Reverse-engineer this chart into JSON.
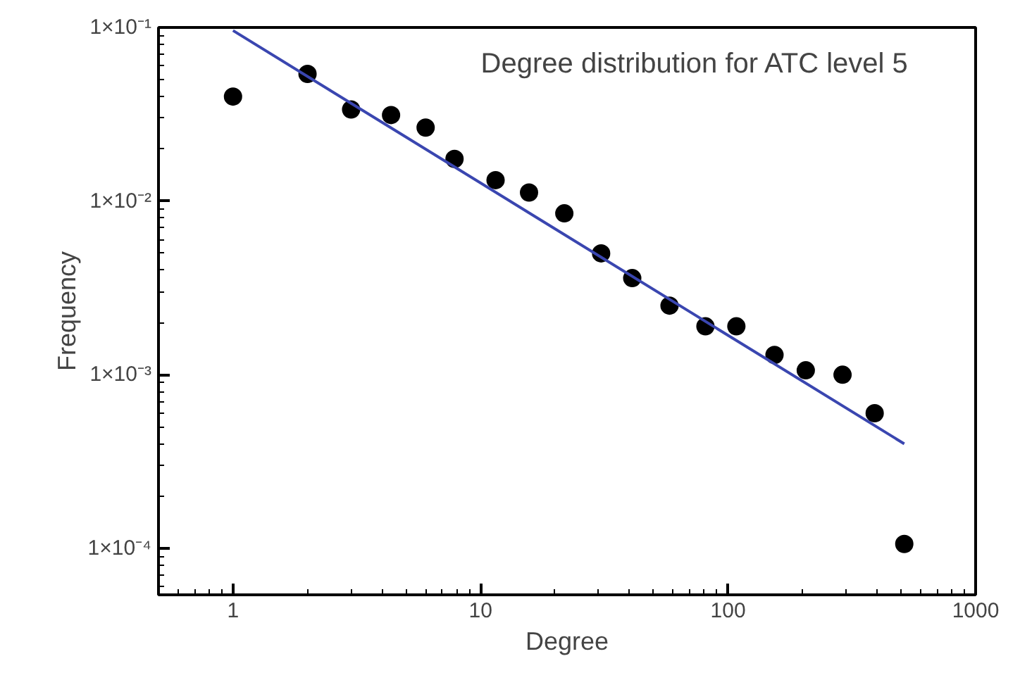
{
  "chart_data": {
    "type": "scatter",
    "xlabel": "Degree",
    "ylabel": "Frequency",
    "annotations": [
      "Degree distribution for ATC level 5"
    ],
    "log": "xy",
    "grid": false,
    "xlim": [
      0.5,
      1000
    ],
    "xticks": [
      1,
      10,
      100,
      1000
    ],
    "ylim": [
      5.4e-05,
      0.1
    ],
    "yticks": [
      {
        "value": 0.1,
        "label": "1×10⁻¹"
      },
      {
        "value": 0.01,
        "label": "1×10⁻²"
      },
      {
        "value": 0.001,
        "label": "1×10⁻³"
      },
      {
        "value": 0.0001,
        "label": "1×10⁻⁴"
      }
    ],
    "series": [
      {
        "color": "#000000",
        "marker": "circle",
        "x": [
          1,
          2,
          3,
          4.35,
          6,
          7.85,
          11.5,
          15.7,
          21.8,
          30.7,
          41,
          58,
          81,
          108,
          154,
          206,
          290,
          391,
          515
        ],
        "values": [
          0.04,
          0.054,
          0.0337,
          0.0313,
          0.0265,
          0.0175,
          0.0132,
          0.0112,
          0.0085,
          0.005,
          0.0036,
          0.0025,
          0.0019,
          0.0019,
          0.0013,
          0.00106,
          0.001,
          0.0006,
          0.000106
        ]
      },
      {
        "type": "line",
        "color": "#3a46b0",
        "line_style": "solid",
        "x": [
          1,
          515
        ],
        "values": [
          0.096,
          0.0004
        ]
      }
    ]
  }
}
